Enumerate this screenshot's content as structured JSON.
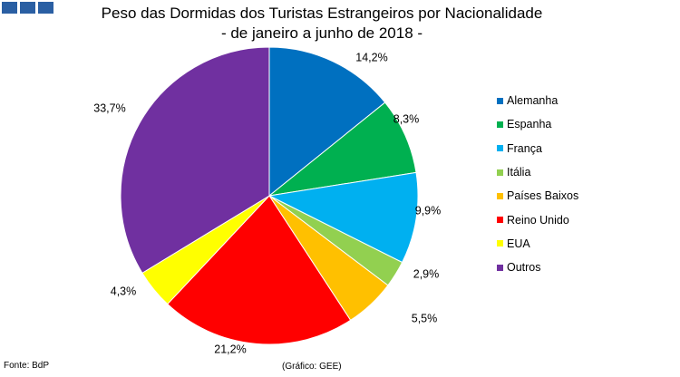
{
  "header": {
    "logo": "three-blue-squares-logo",
    "title_line1": "Peso das Dormidas dos Turistas Estrangeiros por Nacionalidade",
    "title_line2": "- de janeiro a junho de 2018 -"
  },
  "chart_data": {
    "type": "pie",
    "title": "Peso das Dormidas dos Turistas Estrangeiros por Nacionalidade - de janeiro a junho de 2018 -",
    "categories": [
      "Alemanha",
      "Espanha",
      "França",
      "Itália",
      "Países Baixos",
      "Reino Unido",
      "EUA",
      "Outros"
    ],
    "values": [
      14.2,
      8.3,
      9.9,
      2.9,
      5.5,
      21.2,
      4.3,
      33.7
    ],
    "labels": [
      "14,2%",
      "8,3%",
      "9,9%",
      "2,9%",
      "5,5%",
      "21,2%",
      "4,3%",
      "33,7%"
    ],
    "colors": [
      "#0070c0",
      "#00b050",
      "#00b0f0",
      "#92d050",
      "#ffc000",
      "#ff0000",
      "#ffff00",
      "#7030a0"
    ],
    "legend_position": "right"
  },
  "footer": {
    "source": "Fonte: BdP",
    "credit": "(Gráfico: GEE)"
  }
}
